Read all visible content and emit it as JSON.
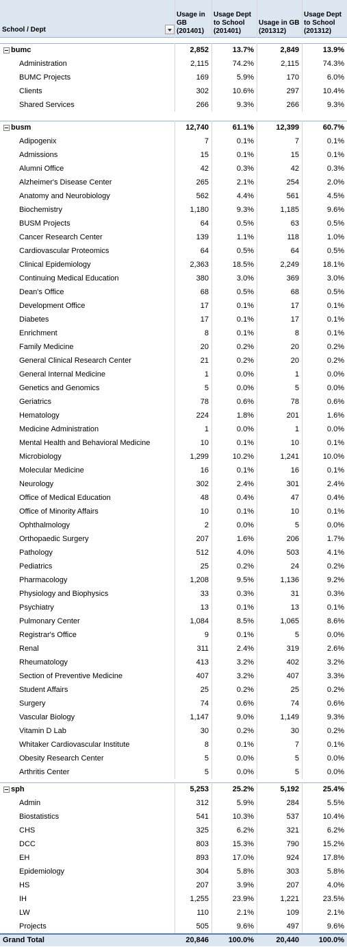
{
  "table": {
    "columns": [
      "School / Dept",
      "Usage in GB (201401)",
      "Usage Dept to School (201401)",
      "Usage in GB (201312)",
      "Usage Dept to School (201312)"
    ],
    "groups": [
      {
        "name": "bumc",
        "cells": [
          "2,852",
          "13.7%",
          "2,849",
          "13.9%"
        ],
        "rows": [
          [
            "Administration",
            "2,115",
            "74.2%",
            "2,115",
            "74.3%"
          ],
          [
            "BUMC Projects",
            "169",
            "5.9%",
            "170",
            "6.0%"
          ],
          [
            "Clients",
            "302",
            "10.6%",
            "297",
            "10.4%"
          ],
          [
            "Shared Services",
            "266",
            "9.3%",
            "266",
            "9.3%"
          ]
        ]
      },
      {
        "name": "busm",
        "cells": [
          "12,740",
          "61.1%",
          "12,399",
          "60.7%"
        ],
        "rows": [
          [
            "Adipogenix",
            "7",
            "0.1%",
            "7",
            "0.1%"
          ],
          [
            "Admissions",
            "15",
            "0.1%",
            "15",
            "0.1%"
          ],
          [
            "Alumni Office",
            "42",
            "0.3%",
            "42",
            "0.3%"
          ],
          [
            "Alzheimer's Disease Center",
            "265",
            "2.1%",
            "254",
            "2.0%"
          ],
          [
            "Anatomy and Neurobiology",
            "562",
            "4.4%",
            "561",
            "4.5%"
          ],
          [
            "Biochemistry",
            "1,180",
            "9.3%",
            "1,185",
            "9.6%"
          ],
          [
            "BUSM Projects",
            "64",
            "0.5%",
            "63",
            "0.5%"
          ],
          [
            "Cancer Research Center",
            "139",
            "1.1%",
            "118",
            "1.0%"
          ],
          [
            "Cardiovascular Proteomics",
            "64",
            "0.5%",
            "64",
            "0.5%"
          ],
          [
            "Clinical Epidemiology",
            "2,363",
            "18.5%",
            "2,249",
            "18.1%"
          ],
          [
            "Continuing Medical Education",
            "380",
            "3.0%",
            "369",
            "3.0%"
          ],
          [
            "Dean's Office",
            "68",
            "0.5%",
            "68",
            "0.5%"
          ],
          [
            "Development Office",
            "17",
            "0.1%",
            "17",
            "0.1%"
          ],
          [
            "Diabetes",
            "17",
            "0.1%",
            "17",
            "0.1%"
          ],
          [
            "Enrichment",
            "8",
            "0.1%",
            "8",
            "0.1%"
          ],
          [
            "Family Medicine",
            "20",
            "0.2%",
            "20",
            "0.2%"
          ],
          [
            "General Clinical Research Center",
            "21",
            "0.2%",
            "20",
            "0.2%"
          ],
          [
            "General Internal Medicine",
            "1",
            "0.0%",
            "1",
            "0.0%"
          ],
          [
            "Genetics and Genomics",
            "5",
            "0.0%",
            "5",
            "0.0%"
          ],
          [
            "Geriatrics",
            "78",
            "0.6%",
            "78",
            "0.6%"
          ],
          [
            "Hematology",
            "224",
            "1.8%",
            "201",
            "1.6%"
          ],
          [
            "Medicine Administration",
            "1",
            "0.0%",
            "1",
            "0.0%"
          ],
          [
            "Mental Health and Behavioral Medicine",
            "10",
            "0.1%",
            "10",
            "0.1%"
          ],
          [
            "Microbiology",
            "1,299",
            "10.2%",
            "1,241",
            "10.0%"
          ],
          [
            "Molecular Medicine",
            "16",
            "0.1%",
            "16",
            "0.1%"
          ],
          [
            "Neurology",
            "302",
            "2.4%",
            "301",
            "2.4%"
          ],
          [
            "Office of Medical Education",
            "48",
            "0.4%",
            "47",
            "0.4%"
          ],
          [
            "Office of Minority Affairs",
            "10",
            "0.1%",
            "10",
            "0.1%"
          ],
          [
            "Ophthalmology",
            "2",
            "0.0%",
            "5",
            "0.0%"
          ],
          [
            "Orthopaedic Surgery",
            "207",
            "1.6%",
            "206",
            "1.7%"
          ],
          [
            "Pathology",
            "512",
            "4.0%",
            "503",
            "4.1%"
          ],
          [
            "Pediatrics",
            "25",
            "0.2%",
            "24",
            "0.2%"
          ],
          [
            "Pharmacology",
            "1,208",
            "9.5%",
            "1,136",
            "9.2%"
          ],
          [
            "Physiology and Biophysics",
            "33",
            "0.3%",
            "31",
            "0.3%"
          ],
          [
            "Psychiatry",
            "13",
            "0.1%",
            "13",
            "0.1%"
          ],
          [
            "Pulmonary Center",
            "1,084",
            "8.5%",
            "1,065",
            "8.6%"
          ],
          [
            "Registrar's Office",
            "9",
            "0.1%",
            "5",
            "0.0%"
          ],
          [
            "Renal",
            "311",
            "2.4%",
            "319",
            "2.6%"
          ],
          [
            "Rheumatology",
            "413",
            "3.2%",
            "402",
            "3.2%"
          ],
          [
            "Section of Preventive Medicine",
            "407",
            "3.2%",
            "407",
            "3.3%"
          ],
          [
            "Student Affairs",
            "25",
            "0.2%",
            "25",
            "0.2%"
          ],
          [
            "Surgery",
            "74",
            "0.6%",
            "74",
            "0.6%"
          ],
          [
            "Vascular Biology",
            "1,147",
            "9.0%",
            "1,149",
            "9.3%"
          ],
          [
            "Vitamin D Lab",
            "30",
            "0.2%",
            "30",
            "0.2%"
          ],
          [
            "Whitaker Cardiovascular Institute",
            "8",
            "0.1%",
            "7",
            "0.1%"
          ],
          [
            "Obesity Research Center",
            "5",
            "0.0%",
            "5",
            "0.0%"
          ],
          [
            "Arthritis Center",
            "5",
            "0.0%",
            "5",
            "0.0%"
          ]
        ]
      },
      {
        "name": "sph",
        "cells": [
          "5,253",
          "25.2%",
          "5,192",
          "25.4%"
        ],
        "rows": [
          [
            "Admin",
            "312",
            "5.9%",
            "284",
            "5.5%"
          ],
          [
            "Biostatistics",
            "541",
            "10.3%",
            "537",
            "10.4%"
          ],
          [
            "CHS",
            "325",
            "6.2%",
            "321",
            "6.2%"
          ],
          [
            "DCC",
            "803",
            "15.3%",
            "790",
            "15.2%"
          ],
          [
            "EH",
            "893",
            "17.0%",
            "924",
            "17.8%"
          ],
          [
            "Epidemiology",
            "304",
            "5.8%",
            "303",
            "5.8%"
          ],
          [
            "HS",
            "207",
            "3.9%",
            "207",
            "4.0%"
          ],
          [
            "IH",
            "1,255",
            "23.9%",
            "1,221",
            "23.5%"
          ],
          [
            "LW",
            "110",
            "2.1%",
            "109",
            "2.1%"
          ],
          [
            "Projects",
            "505",
            "9.6%",
            "497",
            "9.6%"
          ]
        ]
      }
    ],
    "total": {
      "label": "Grand Total",
      "cells": [
        "20,846",
        "100.0%",
        "20,440",
        "100.0%"
      ]
    }
  }
}
